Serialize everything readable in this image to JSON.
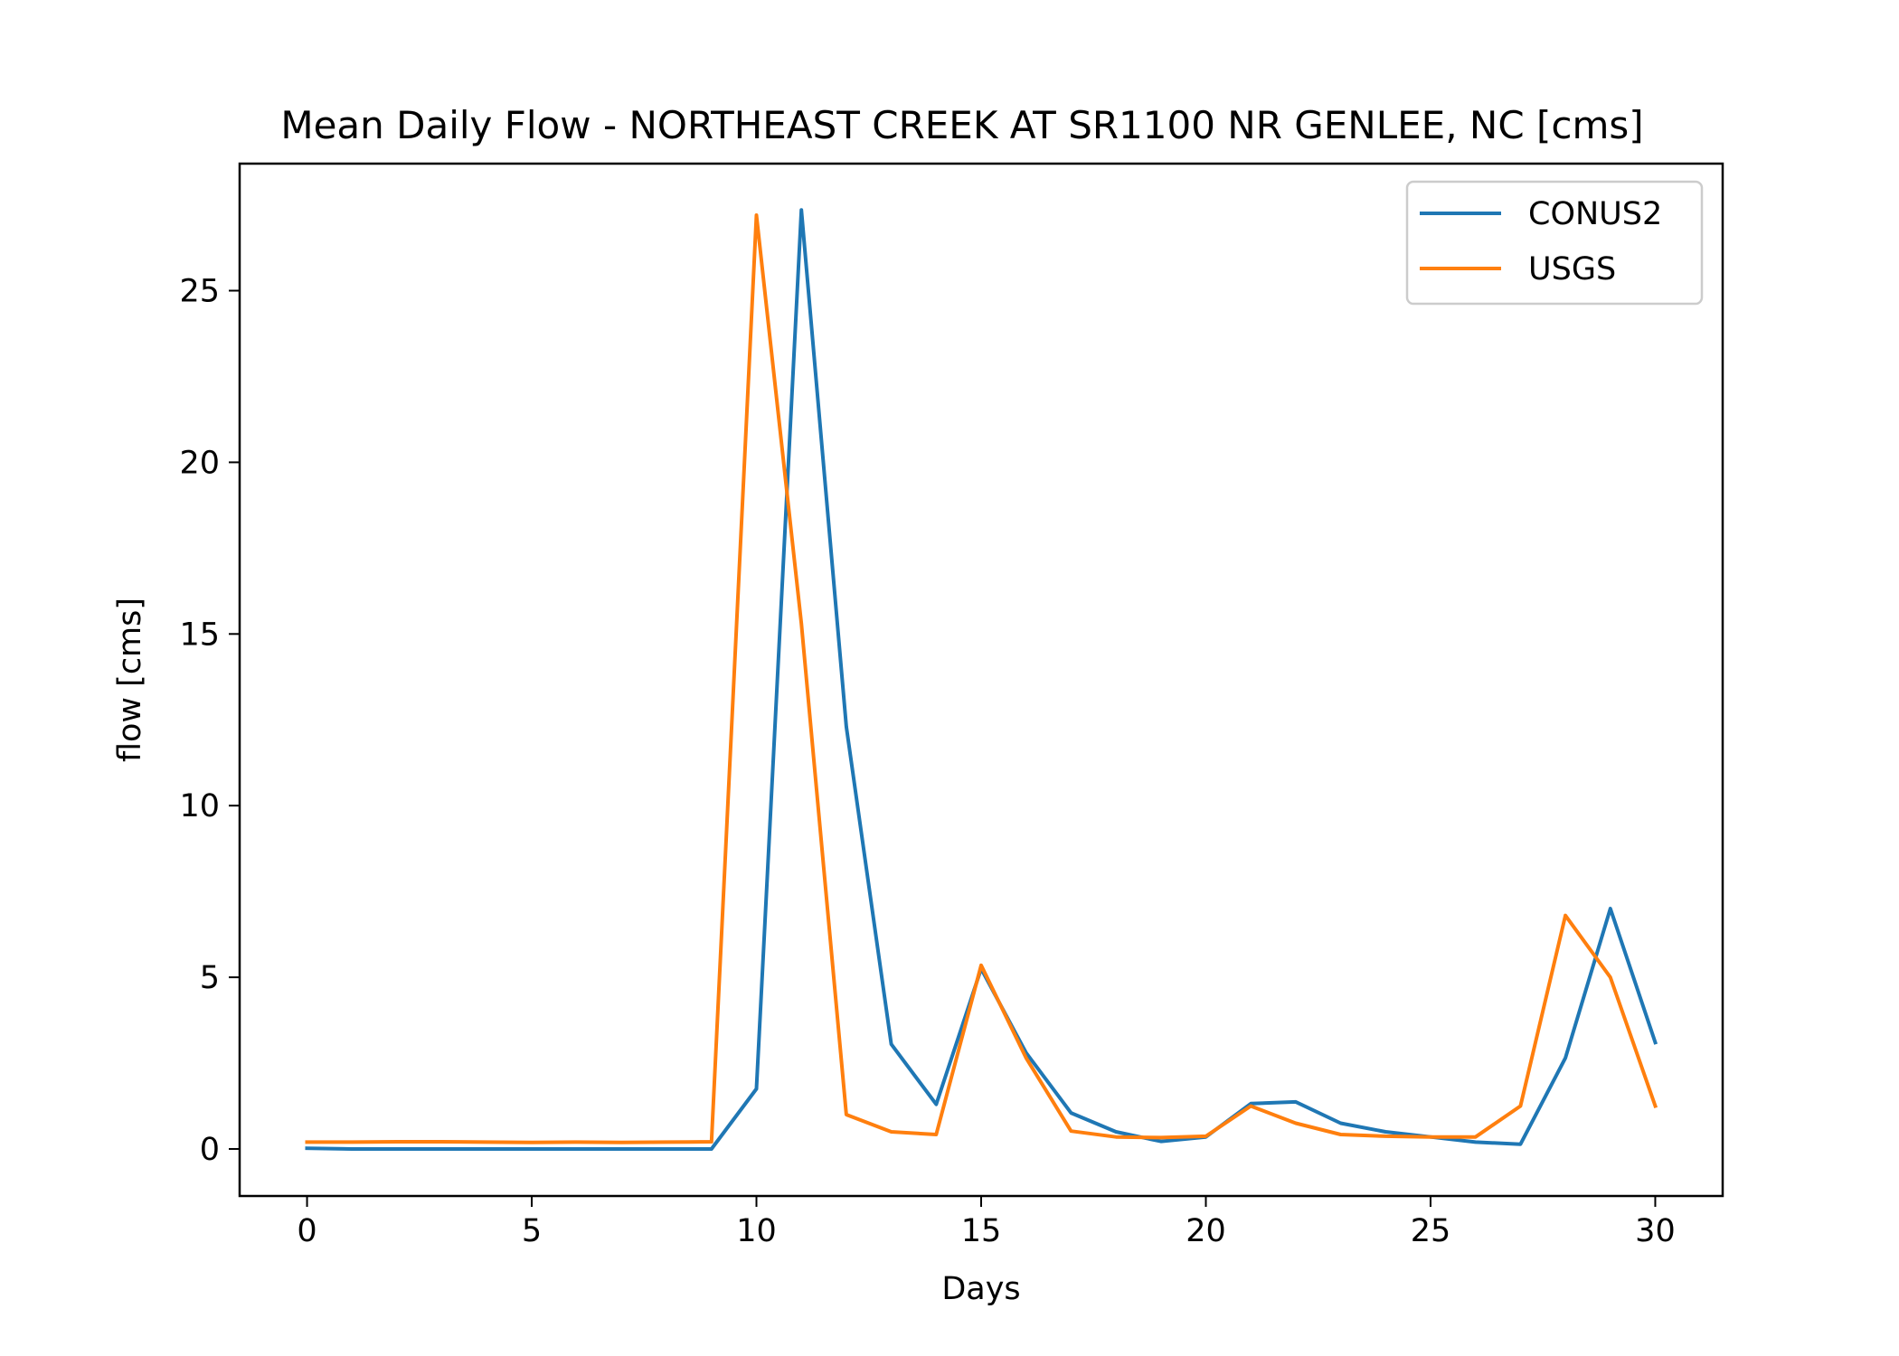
{
  "chart_data": {
    "type": "line",
    "title": "Mean Daily Flow - NORTHEAST CREEK AT SR1100 NR GENLEE, NC [cms]",
    "xlabel": "Days",
    "ylabel": "flow [cms]",
    "xlim": [
      -1.5,
      31.5
    ],
    "ylim": [
      -1.37,
      28.7
    ],
    "xticks": [
      0,
      5,
      10,
      15,
      20,
      25,
      30
    ],
    "yticks": [
      0,
      5,
      10,
      15,
      20,
      25
    ],
    "grid": false,
    "legend_position": "upper right",
    "x": [
      0,
      1,
      2,
      3,
      4,
      5,
      6,
      7,
      8,
      9,
      10,
      11,
      12,
      13,
      14,
      15,
      16,
      17,
      18,
      19,
      20,
      21,
      22,
      23,
      24,
      25,
      26,
      27,
      28,
      29,
      30
    ],
    "series": [
      {
        "name": "CONUS2",
        "color": "#1f77b4",
        "values": [
          0.02,
          0.0,
          0.0,
          0.0,
          0.0,
          0.0,
          0.0,
          0.0,
          0.0,
          0.0,
          1.75,
          27.35,
          12.3,
          3.05,
          1.3,
          5.25,
          2.8,
          1.05,
          0.5,
          0.22,
          0.35,
          1.32,
          1.37,
          0.75,
          0.5,
          0.35,
          0.2,
          0.14,
          2.65,
          7.0,
          3.1
        ]
      },
      {
        "name": "USGS",
        "color": "#ff7f0e",
        "values": [
          0.2,
          0.2,
          0.21,
          0.21,
          0.2,
          0.19,
          0.2,
          0.19,
          0.2,
          0.21,
          27.2,
          15.3,
          1.0,
          0.5,
          0.42,
          5.35,
          2.65,
          0.52,
          0.35,
          0.33,
          0.37,
          1.25,
          0.75,
          0.42,
          0.37,
          0.35,
          0.35,
          1.25,
          6.8,
          5.0,
          1.25
        ]
      }
    ]
  }
}
